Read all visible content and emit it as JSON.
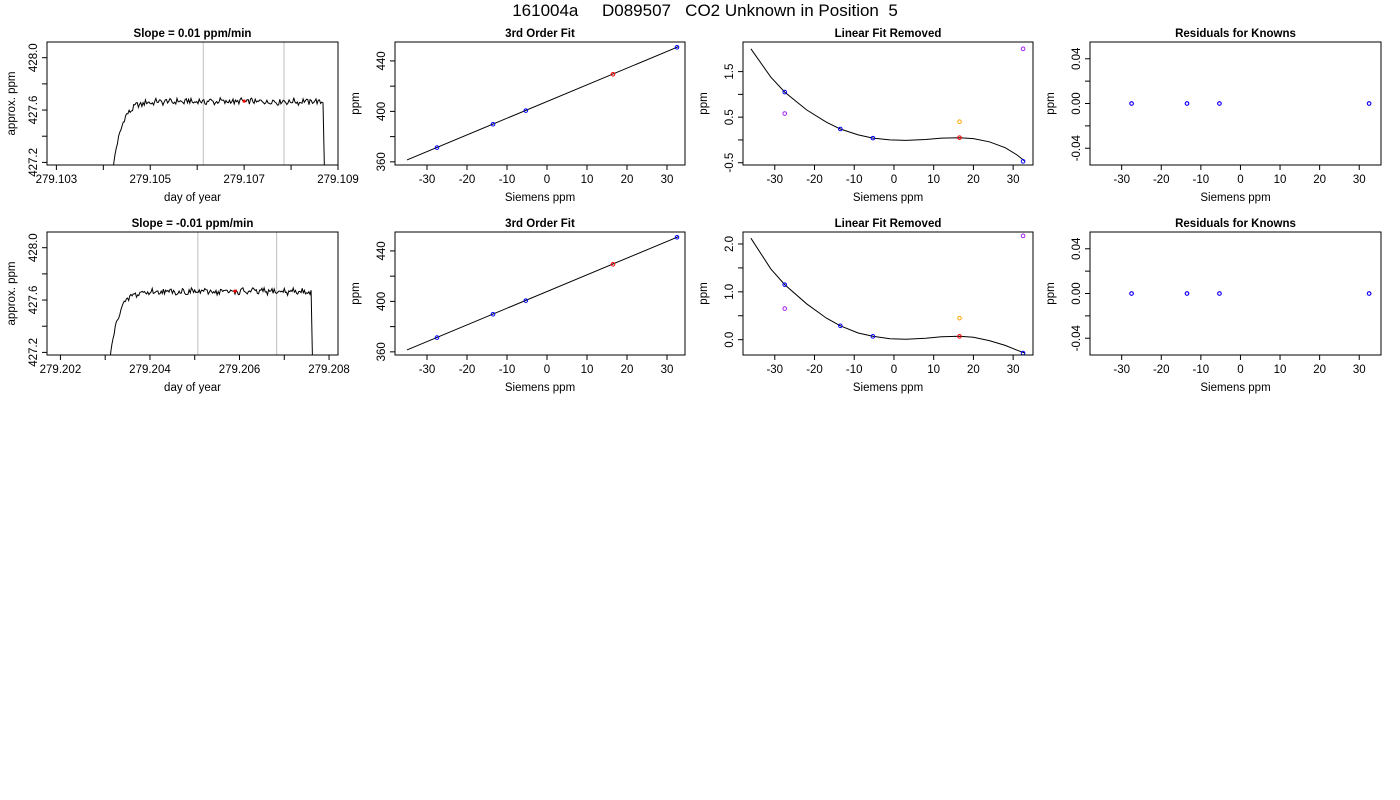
{
  "title": "161004a     D089507   CO2 Unknown in Position  5",
  "colors": {
    "axis": "#000000",
    "trace": "#000000",
    "vline": "#bebebe",
    "known": "#0000ff",
    "unknown": "#ff0000",
    "alt": "#ffa500",
    "resid": "#a020f0"
  },
  "chart_data": [
    {
      "type": "line",
      "title": "Slope =  0.01  ppm/min",
      "xlabel": "day of year",
      "ylabel": "approx. ppm",
      "xlim": [
        279.1028,
        279.109
      ],
      "ylim": [
        427.18,
        428.12
      ],
      "xticks": [
        279.103,
        279.104,
        279.105,
        279.106,
        279.107,
        279.108,
        279.109
      ],
      "xticklabels": [
        "279.103",
        "",
        "279.105",
        "",
        "279.107",
        "",
        "279.109"
      ],
      "yticks": [
        427.2,
        427.4,
        427.6,
        427.8,
        428.0
      ],
      "yticklabels": [
        "427.2",
        "",
        "427.6",
        "",
        "428.0"
      ],
      "vlines": [
        279.10613,
        279.10785
      ],
      "start": 279.1042,
      "end": 279.10868,
      "level": 427.665,
      "slope": 0.01,
      "marker": {
        "x": 279.107,
        "y": 427.668
      }
    },
    {
      "type": "scatter",
      "title": "3rd Order Fit",
      "xlabel": "Siemens ppm",
      "ylabel": "ppm",
      "xlim": [
        -38,
        34.5
      ],
      "ylim": [
        357.5,
        455
      ],
      "xticks": [
        -30,
        -20,
        -10,
        0,
        10,
        20,
        30
      ],
      "xticklabels": [
        "-30",
        "-20",
        "-10",
        "0",
        "10",
        "20",
        "30"
      ],
      "yticks": [
        360,
        380,
        400,
        420,
        440
      ],
      "yticklabels": [
        "360",
        "",
        "400",
        "",
        "440"
      ],
      "fit": {
        "x0": -35,
        "y0": 361.5,
        "x1": 33,
        "y1": 451.5
      },
      "points": [
        {
          "x": -27.5,
          "y": 371.3,
          "c": "known"
        },
        {
          "x": -13.5,
          "y": 389.8,
          "c": "known"
        },
        {
          "x": -5.3,
          "y": 400.6,
          "c": "known"
        },
        {
          "x": 16.5,
          "y": 429.4,
          "c": "unknown"
        },
        {
          "x": 32.5,
          "y": 450.8,
          "c": "known"
        }
      ]
    },
    {
      "type": "scatter",
      "title": "Linear Fit Removed",
      "xlabel": "Siemens ppm",
      "ylabel": "ppm",
      "xlim": [
        -38,
        35
      ],
      "ylim": [
        -0.55,
        2.15
      ],
      "xticks": [
        -30,
        -20,
        -10,
        0,
        10,
        20,
        30
      ],
      "xticklabels": [
        "-30",
        "-20",
        "-10",
        "0",
        "10",
        "20",
        "30"
      ],
      "yticks": [
        -0.5,
        0.0,
        0.5,
        1.0,
        1.5
      ],
      "yticklabels": [
        "-0.5",
        "",
        "0.5",
        "",
        "1.5"
      ],
      "curve": [
        [
          -36,
          2.0
        ],
        [
          -31,
          1.38
        ],
        [
          -27.5,
          1.05
        ],
        [
          -22,
          0.66
        ],
        [
          -17,
          0.39
        ],
        [
          -13.5,
          0.24
        ],
        [
          -9,
          0.11
        ],
        [
          -5.3,
          0.04
        ],
        [
          -1,
          0.0
        ],
        [
          3,
          -0.01
        ],
        [
          8,
          0.01
        ],
        [
          12,
          0.04
        ],
        [
          16.5,
          0.05
        ],
        [
          20,
          0.03
        ],
        [
          24,
          -0.04
        ],
        [
          28,
          -0.17
        ],
        [
          31,
          -0.33
        ],
        [
          33,
          -0.47
        ]
      ],
      "points": [
        {
          "x": -27.5,
          "y": 1.05,
          "c": "known"
        },
        {
          "x": -27.5,
          "y": 0.58,
          "c": "resid"
        },
        {
          "x": -13.5,
          "y": 0.24,
          "c": "known"
        },
        {
          "x": -5.3,
          "y": 0.04,
          "c": "known"
        },
        {
          "x": 16.5,
          "y": 0.05,
          "c": "unknown"
        },
        {
          "x": 16.5,
          "y": 0.4,
          "c": "alt"
        },
        {
          "x": 32.5,
          "y": 2.0,
          "c": "resid"
        },
        {
          "x": 32.5,
          "y": -0.47,
          "c": "known"
        }
      ]
    },
    {
      "type": "scatter",
      "title": "Residuals for Knowns",
      "xlabel": "Siemens ppm",
      "ylabel": "ppm",
      "xlim": [
        -38,
        35.5
      ],
      "ylim": [
        -0.055,
        0.055
      ],
      "xticks": [
        -30,
        -20,
        -10,
        0,
        10,
        20,
        30
      ],
      "xticklabels": [
        "-30",
        "-20",
        "-10",
        "0",
        "10",
        "20",
        "30"
      ],
      "yticks": [
        -0.04,
        -0.02,
        0.0,
        0.02,
        0.04
      ],
      "yticklabels": [
        "-0.04",
        "",
        "0.00",
        "",
        "0.04"
      ],
      "points": [
        {
          "x": -27.5,
          "y": 0.0,
          "c": "resid"
        },
        {
          "x": -27.5,
          "y": 0.0,
          "c": "known"
        },
        {
          "x": -13.5,
          "y": 0.0,
          "c": "resid"
        },
        {
          "x": -13.5,
          "y": 0.0,
          "c": "known"
        },
        {
          "x": -5.3,
          "y": 0.0,
          "c": "resid"
        },
        {
          "x": -5.3,
          "y": 0.0,
          "c": "known"
        },
        {
          "x": 32.5,
          "y": 0.0,
          "c": "resid"
        },
        {
          "x": 32.5,
          "y": 0.0,
          "c": "known"
        }
      ]
    },
    {
      "type": "line",
      "title": "Slope =  -0.01  ppm/min",
      "xlabel": "day of year",
      "ylabel": "approx. ppm",
      "xlim": [
        279.2017,
        279.2082
      ],
      "ylim": [
        427.18,
        428.12
      ],
      "xticks": [
        279.202,
        279.203,
        279.204,
        279.205,
        279.206,
        279.207,
        279.208
      ],
      "xticklabels": [
        "279.202",
        "",
        "279.204",
        "",
        "279.206",
        "",
        "279.208"
      ],
      "yticks": [
        427.2,
        427.4,
        427.6,
        427.8,
        428.0
      ],
      "yticklabels": [
        "427.2",
        "",
        "427.6",
        "",
        "428.0"
      ],
      "vlines": [
        279.20507,
        279.20683
      ],
      "start": 279.2031,
      "end": 279.2076,
      "level": 427.665,
      "slope": -0.01,
      "marker": {
        "x": 279.2059,
        "y": 427.668
      }
    },
    {
      "type": "scatter",
      "title": "3rd Order Fit",
      "xlabel": "Siemens ppm",
      "ylabel": "ppm",
      "xlim": [
        -38,
        34.5
      ],
      "ylim": [
        357.5,
        455
      ],
      "xticks": [
        -30,
        -20,
        -10,
        0,
        10,
        20,
        30
      ],
      "xticklabels": [
        "-30",
        "-20",
        "-10",
        "0",
        "10",
        "20",
        "30"
      ],
      "yticks": [
        360,
        380,
        400,
        420,
        440
      ],
      "yticklabels": [
        "360",
        "",
        "400",
        "",
        "440"
      ],
      "fit": {
        "x0": -35,
        "y0": 361.5,
        "x1": 33,
        "y1": 451.5
      },
      "points": [
        {
          "x": -27.5,
          "y": 371.3,
          "c": "known"
        },
        {
          "x": -13.5,
          "y": 389.8,
          "c": "known"
        },
        {
          "x": -5.3,
          "y": 400.6,
          "c": "known"
        },
        {
          "x": 16.5,
          "y": 429.4,
          "c": "unknown"
        },
        {
          "x": 32.5,
          "y": 450.8,
          "c": "known"
        }
      ]
    },
    {
      "type": "scatter",
      "title": "Linear Fit Removed",
      "xlabel": "Siemens ppm",
      "ylabel": "ppm",
      "xlim": [
        -38,
        35
      ],
      "ylim": [
        -0.32,
        2.25
      ],
      "xticks": [
        -30,
        -20,
        -10,
        0,
        10,
        20,
        30
      ],
      "xticklabels": [
        "-30",
        "-20",
        "-10",
        "0",
        "10",
        "20",
        "30"
      ],
      "yticks": [
        0.0,
        0.5,
        1.0,
        1.5,
        2.0
      ],
      "yticklabels": [
        "0.0",
        "",
        "1.0",
        "",
        "2.0"
      ],
      "curve": [
        [
          -36,
          2.12
        ],
        [
          -31,
          1.48
        ],
        [
          -27.5,
          1.15
        ],
        [
          -22,
          0.75
        ],
        [
          -17,
          0.45
        ],
        [
          -13.5,
          0.29
        ],
        [
          -9,
          0.14
        ],
        [
          -5.3,
          0.07
        ],
        [
          -1,
          0.02
        ],
        [
          3,
          0.01
        ],
        [
          8,
          0.03
        ],
        [
          12,
          0.06
        ],
        [
          16.5,
          0.07
        ],
        [
          20,
          0.05
        ],
        [
          24,
          -0.02
        ],
        [
          28,
          -0.12
        ],
        [
          31,
          -0.22
        ],
        [
          33,
          -0.28
        ]
      ],
      "points": [
        {
          "x": -27.5,
          "y": 1.15,
          "c": "known"
        },
        {
          "x": -27.5,
          "y": 0.65,
          "c": "resid"
        },
        {
          "x": -13.5,
          "y": 0.29,
          "c": "known"
        },
        {
          "x": -5.3,
          "y": 0.07,
          "c": "known"
        },
        {
          "x": 16.5,
          "y": 0.07,
          "c": "unknown"
        },
        {
          "x": 16.5,
          "y": 0.45,
          "c": "alt"
        },
        {
          "x": 32.5,
          "y": 2.17,
          "c": "resid"
        },
        {
          "x": 32.5,
          "y": -0.28,
          "c": "known"
        }
      ]
    },
    {
      "type": "scatter",
      "title": "Residuals for Knowns",
      "xlabel": "Siemens ppm",
      "ylabel": "ppm",
      "xlim": [
        -38,
        35.5
      ],
      "ylim": [
        -0.055,
        0.055
      ],
      "xticks": [
        -30,
        -20,
        -10,
        0,
        10,
        20,
        30
      ],
      "xticklabels": [
        "-30",
        "-20",
        "-10",
        "0",
        "10",
        "20",
        "30"
      ],
      "yticks": [
        -0.04,
        -0.02,
        0.0,
        0.02,
        0.04
      ],
      "yticklabels": [
        "-0.04",
        "",
        "0.00",
        "",
        "0.04"
      ],
      "points": [
        {
          "x": -27.5,
          "y": 0.0,
          "c": "resid"
        },
        {
          "x": -27.5,
          "y": 0.0,
          "c": "known"
        },
        {
          "x": -13.5,
          "y": 0.0,
          "c": "resid"
        },
        {
          "x": -13.5,
          "y": 0.0,
          "c": "known"
        },
        {
          "x": -5.3,
          "y": 0.0,
          "c": "resid"
        },
        {
          "x": -5.3,
          "y": 0.0,
          "c": "known"
        },
        {
          "x": 32.5,
          "y": 0.0,
          "c": "resid"
        },
        {
          "x": 32.5,
          "y": 0.0,
          "c": "known"
        }
      ]
    }
  ]
}
